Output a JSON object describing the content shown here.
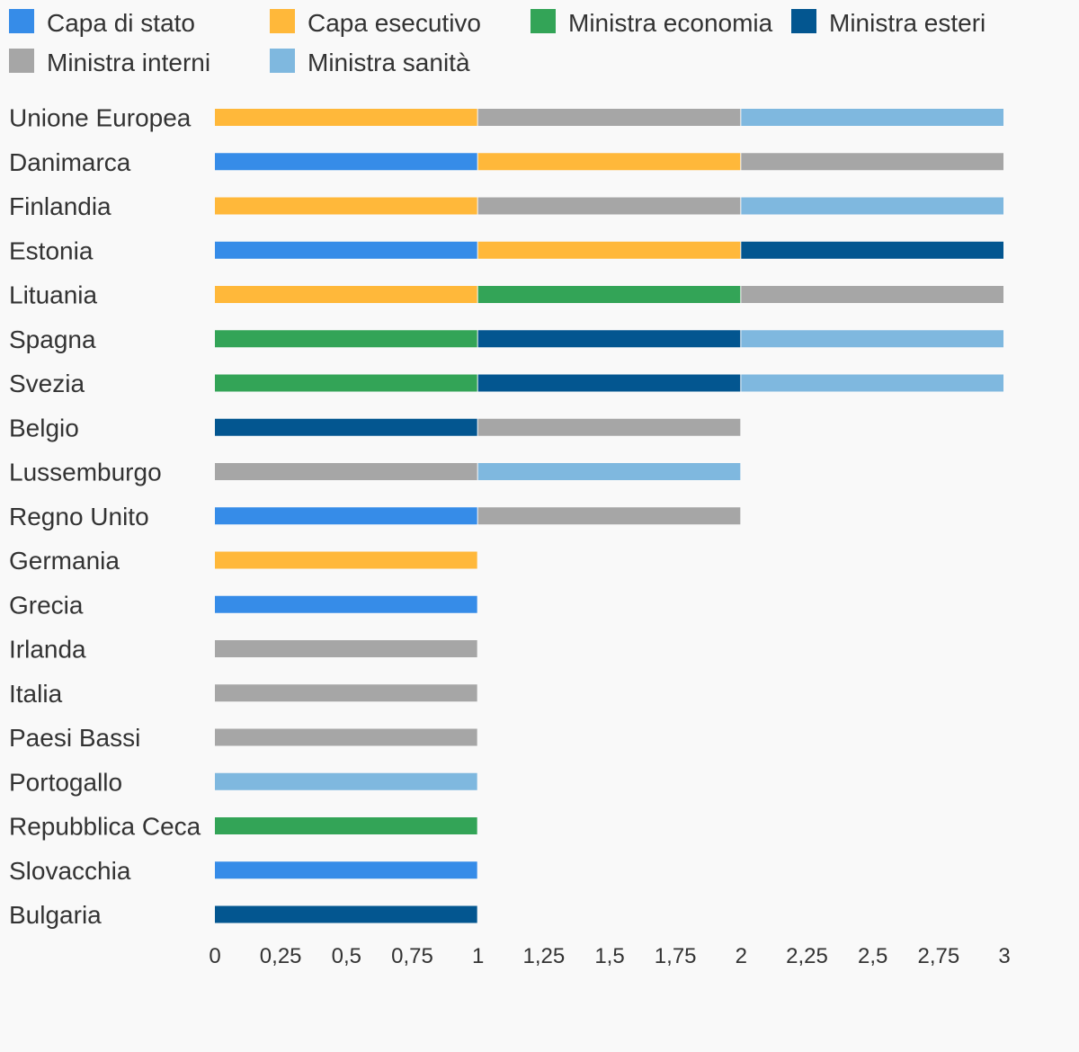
{
  "chart_data": {
    "type": "bar",
    "orientation": "horizontal",
    "stacked": true,
    "title": "",
    "xlabel": "",
    "ylabel": "",
    "xlim": [
      0,
      3
    ],
    "x_ticks": [
      0,
      0.25,
      0.5,
      0.75,
      1,
      1.25,
      1.5,
      1.75,
      2,
      2.25,
      2.5,
      2.75,
      3
    ],
    "x_tick_labels": [
      "0",
      "0,25",
      "0,5",
      "0,75",
      "1",
      "1,25",
      "1,5",
      "1,75",
      "2",
      "2,25",
      "2,5",
      "2,75",
      "3"
    ],
    "grid": false,
    "legend_position": "top",
    "categories": [
      "Unione Europea",
      "Danimarca",
      "Finlandia",
      "Estonia",
      "Lituania",
      "Spagna",
      "Svezia",
      "Belgio",
      "Lussemburgo",
      "Regno Unito",
      "Germania",
      "Grecia",
      "Irlanda",
      "Italia",
      "Paesi Bassi",
      "Portogallo",
      "Repubblica Ceca",
      "Slovacchia",
      "Bulgaria"
    ],
    "series": [
      {
        "name": "Capa di stato",
        "color": "#368ce8",
        "values": [
          0,
          1,
          0,
          1,
          0,
          0,
          0,
          0,
          0,
          1,
          0,
          1,
          0,
          0,
          0,
          0,
          0,
          1,
          0
        ]
      },
      {
        "name": "Capa esecutivo",
        "color": "#ffb83a",
        "values": [
          1,
          1,
          1,
          1,
          1,
          0,
          0,
          0,
          0,
          0,
          1,
          0,
          0,
          0,
          0,
          0,
          0,
          0,
          0
        ]
      },
      {
        "name": "Ministra economia",
        "color": "#33a457",
        "values": [
          0,
          0,
          0,
          0,
          1,
          1,
          1,
          0,
          0,
          0,
          0,
          0,
          0,
          0,
          0,
          0,
          1,
          0,
          0
        ]
      },
      {
        "name": "Ministra esteri",
        "color": "#035690",
        "values": [
          0,
          0,
          0,
          1,
          0,
          1,
          1,
          1,
          0,
          0,
          0,
          0,
          0,
          0,
          0,
          0,
          0,
          0,
          1
        ]
      },
      {
        "name": "Ministra interni",
        "color": "#a6a6a6",
        "values": [
          1,
          1,
          1,
          0,
          1,
          0,
          0,
          1,
          1,
          1,
          0,
          0,
          1,
          1,
          1,
          0,
          0,
          0,
          0
        ]
      },
      {
        "name": "Ministra sanità",
        "color": "#7fb8df",
        "values": [
          1,
          0,
          1,
          0,
          0,
          1,
          1,
          0,
          1,
          0,
          0,
          0,
          0,
          0,
          0,
          1,
          0,
          0,
          0
        ]
      }
    ]
  }
}
